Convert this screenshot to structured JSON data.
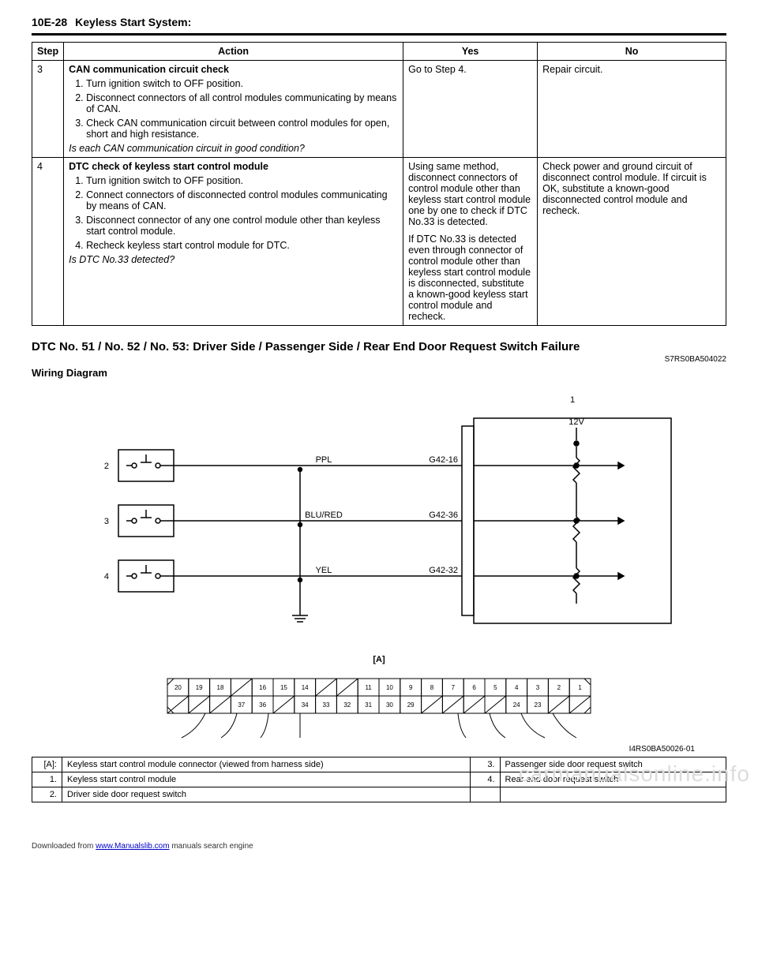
{
  "header": {
    "page": "10E-28",
    "title": "Keyless Start System:"
  },
  "table": {
    "headers": {
      "step": "Step",
      "action": "Action",
      "yes": "Yes",
      "no": "No"
    },
    "rows": [
      {
        "step": "3",
        "title": "CAN communication circuit check",
        "items": [
          " Turn ignition switch to OFF position.",
          "Disconnect connectors of all control modules communicating by means of CAN.",
          "Check CAN communication circuit between control modules for open, short and high resistance."
        ],
        "question": "Is each CAN communication circuit in good condition?",
        "yes": "Go to Step 4.",
        "no": "Repair circuit."
      },
      {
        "step": "4",
        "title": "DTC check of keyless start control module",
        "items": [
          "Turn ignition switch to OFF position.",
          "Connect connectors of disconnected control modules communicating by means of CAN.",
          "Disconnect connector of any one control module other than keyless start control module.",
          "Recheck keyless start control module for DTC."
        ],
        "question": "Is DTC No.33 detected?",
        "yes": "Using same method, disconnect connectors of control module other than keyless start control module one by one to check if DTC No.33 is detected.\nIf DTC No.33 is detected even through connector of control module other than keyless start control module is disconnected, substitute a known-good keyless start control module and recheck.",
        "no": "Check power and ground circuit of disconnect control module. If circuit is OK, substitute a known-good disconnected control module and recheck."
      }
    ]
  },
  "section": {
    "heading": "DTC No. 51 / No. 52 / No. 53: Driver Side / Passenger Side / Rear End Door Request Switch Failure",
    "docref": "S7RS0BA504022",
    "subhead": "Wiring Diagram"
  },
  "wiring": {
    "voltage": "12V",
    "module_label": "1",
    "switches": [
      {
        "num": "2",
        "wire": "PPL",
        "pin": "G42-16"
      },
      {
        "num": "3",
        "wire": "BLU/RED",
        "pin": "G42-36"
      },
      {
        "num": "4",
        "wire": "YEL",
        "pin": "G42-32"
      }
    ],
    "connector_label": "[A]",
    "top_pins": [
      "20",
      "19",
      "18",
      "",
      "16",
      "15",
      "14",
      "",
      "",
      "11",
      "10",
      "9",
      "8",
      "7",
      "6",
      "5",
      "4",
      "3",
      "2",
      "1"
    ],
    "bot_pins": [
      "",
      "",
      "",
      "37",
      "36",
      "",
      "34",
      "33",
      "32",
      "31",
      "30",
      "29",
      "",
      "",
      "",
      "",
      "24",
      "23",
      "",
      ""
    ],
    "figref": "I4RS0BA50026-01"
  },
  "legend": {
    "rows": [
      {
        "k1": "[A]:",
        "v1": "Keyless start control module connector (viewed from harness side)",
        "k2": "3.",
        "v2": "Passenger side door request switch"
      },
      {
        "k1": "1.",
        "v1": "Keyless start control module",
        "k2": "4.",
        "v2": "Rear end door request switch"
      },
      {
        "k1": "2.",
        "v1": "Driver side door request switch",
        "k2": "",
        "v2": ""
      }
    ]
  },
  "footer": {
    "prefix": "Downloaded from ",
    "link": "www.Manualslib.com",
    "suffix": " manuals search engine"
  },
  "watermark": "carmanualsonline.info"
}
